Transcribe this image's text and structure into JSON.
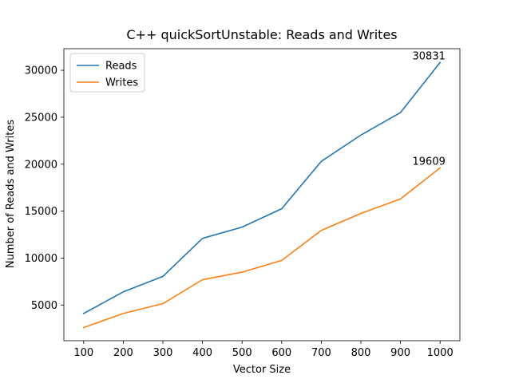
{
  "chart_data": {
    "type": "line",
    "title": "C++ quickSortUnstable: Reads and Writes",
    "xlabel": "Vector Size",
    "ylabel": "Number of Reads and Writes",
    "x": [
      100,
      200,
      300,
      400,
      500,
      600,
      700,
      800,
      900,
      1000
    ],
    "xlim": [
      50,
      1050
    ],
    "ylim": [
      1200,
      32300
    ],
    "xticks": [
      100,
      200,
      300,
      400,
      500,
      600,
      700,
      800,
      900,
      1000
    ],
    "yticks": [
      5000,
      10000,
      15000,
      20000,
      25000,
      30000
    ],
    "grid": false,
    "legend_position": "top-left",
    "series": [
      {
        "name": "Reads",
        "color": "#1f77b4",
        "values": [
          4100,
          6400,
          8050,
          12100,
          13300,
          15250,
          20300,
          23100,
          25500,
          30831
        ],
        "end_label": "30831"
      },
      {
        "name": "Writes",
        "color": "#ff7f0e",
        "values": [
          2600,
          4100,
          5150,
          7700,
          8500,
          9750,
          12950,
          14750,
          16300,
          19609
        ],
        "end_label": "19609"
      }
    ]
  }
}
